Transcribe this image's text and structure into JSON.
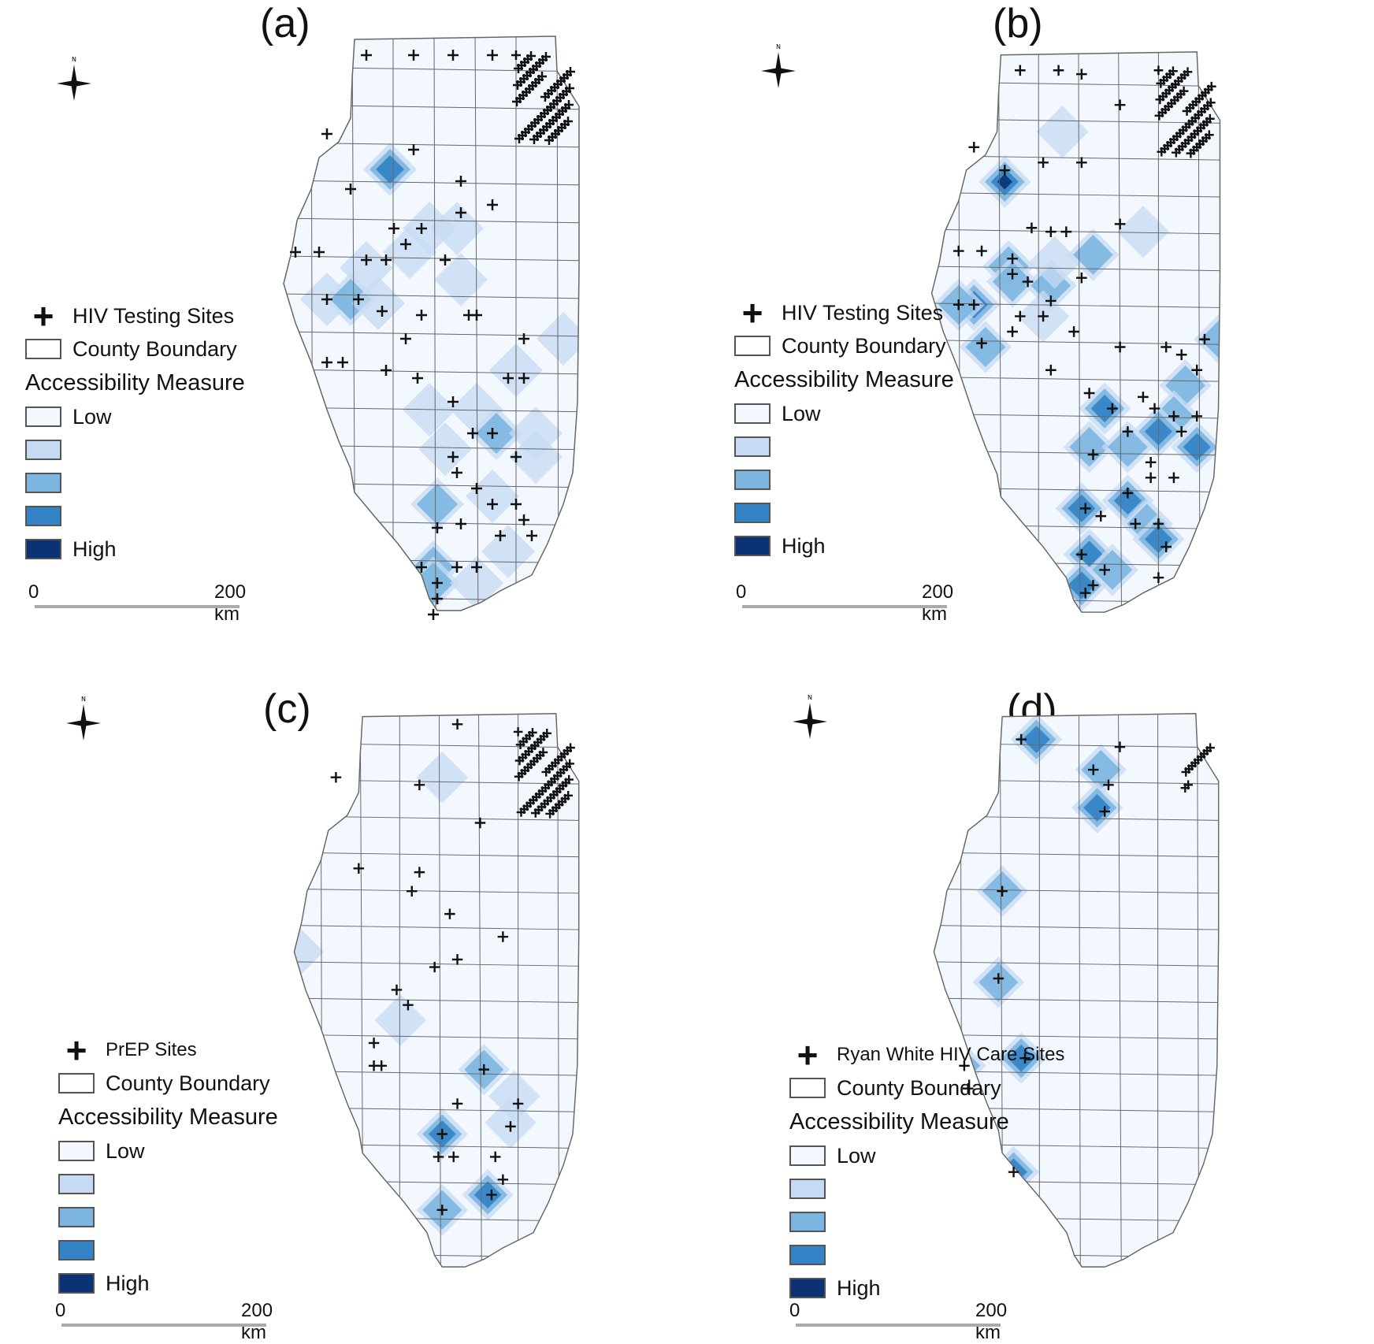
{
  "panels": [
    {
      "label": "(a)",
      "site_label": "HIV Testing Sites",
      "county": "County Boundary",
      "measure": "Accessibility Measure",
      "low": "Low",
      "high": "High",
      "scale0": "0",
      "scale1": "200 km"
    },
    {
      "label": "(b)",
      "site_label": "HIV Testing Sites",
      "county": "County Boundary",
      "measure": "Accessibility Measure",
      "low": "Low",
      "high": "High",
      "scale0": "0",
      "scale1": "200 km"
    },
    {
      "label": "(c)",
      "site_label": "PrEP Sites",
      "county": "County Boundary",
      "measure": "Accessibility Measure",
      "low": "Low",
      "high": "High",
      "scale0": "0",
      "scale1": "200 km"
    },
    {
      "label": "(d)",
      "site_label": "Ryan White HIV Care Sites",
      "county": "County Boundary",
      "measure": "Accessibility Measure",
      "low": "Low",
      "high": "High",
      "scale0": "0",
      "scale1": "200 km"
    }
  ],
  "colors": {
    "low": "#f3f8fe",
    "c2": "#c6dbf3",
    "c3": "#7cb6e0",
    "c4": "#3383c6",
    "high": "#0a3275",
    "county_line": "#666666",
    "site": "#111111"
  },
  "compass_icon": "north-arrow-icon",
  "site_icon": "plus-icon"
}
